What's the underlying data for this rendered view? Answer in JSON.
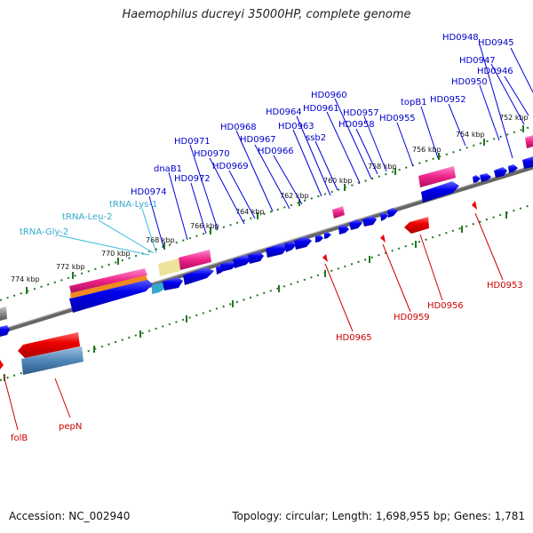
{
  "title": "Haemophilus ducreyi 35000HP, complete genome",
  "footer": {
    "accession": "Accession: NC_002940",
    "summary": "Topology: circular; Length: 1,698,955 bp; Genes: 1,781"
  },
  "colors": {
    "forward_gene": "#0000ee",
    "reverse_gene": "#ee0000",
    "trna": "#33aacc",
    "pink_feature": "#ee2288",
    "tick_marks": "#227722"
  },
  "scale_labels": [
    "752 kbp",
    "754 kbp",
    "756 kbp",
    "758 kbp",
    "760 kbp",
    "762 kbp",
    "764 kbp",
    "766 kbp",
    "768 kbp",
    "770 kbp",
    "772 kbp",
    "774 kbp"
  ],
  "forward_labels": [
    "HD0948",
    "HD0945",
    "HD0947",
    "HD0946",
    "HD0950",
    "HD0952",
    "HD0960",
    "topB1",
    "HD0961",
    "HD0957",
    "HD0964",
    "HD0955",
    "HD0958",
    "HD0963",
    "HD0968",
    "ssb2",
    "HD0967",
    "HD0971",
    "HD0966",
    "HD0970",
    "dnaB1",
    "HD0969",
    "HD0972",
    "HD0974"
  ],
  "trna_labels": [
    "tRNA-Lys-1",
    "tRNA-Leu-2",
    "tRNA-Gly-2"
  ],
  "reverse_labels": [
    "HD0953",
    "HD0956",
    "HD0959",
    "HD0965",
    "folB",
    "pepN"
  ]
}
